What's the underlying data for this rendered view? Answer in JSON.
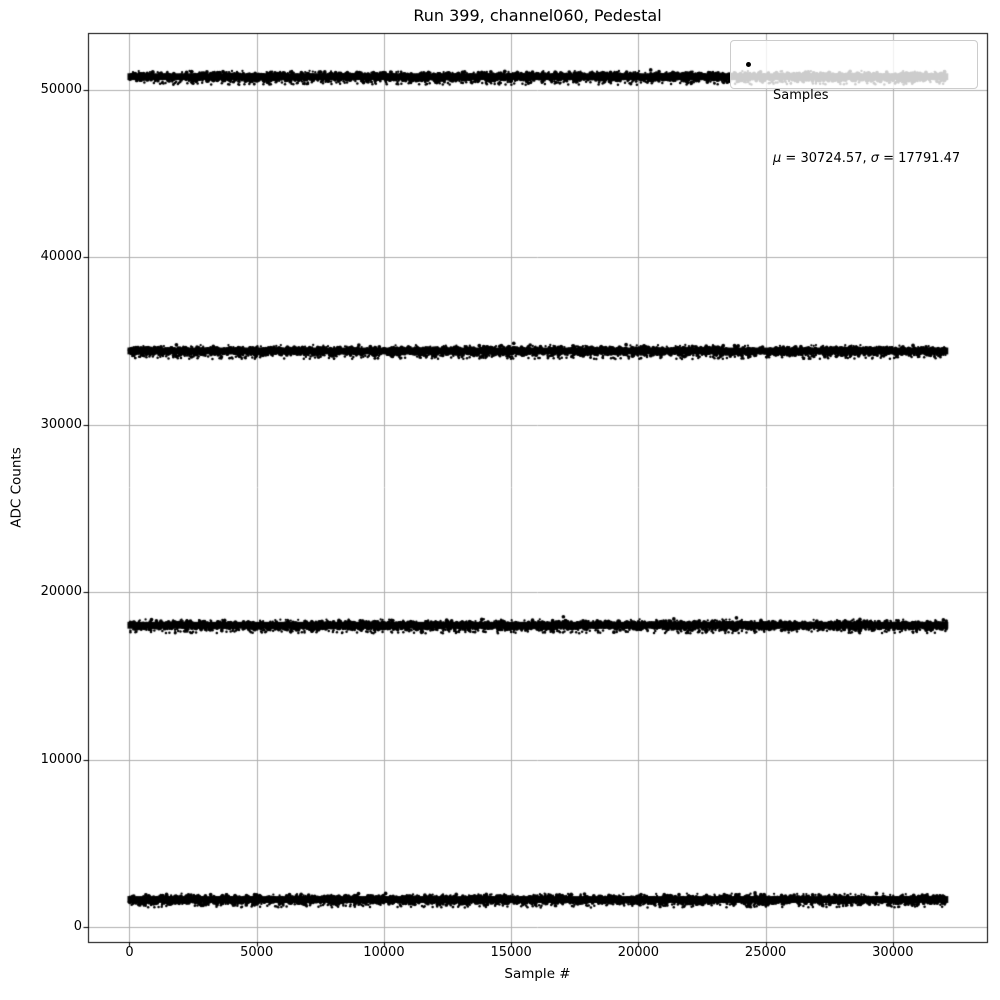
{
  "title": "Run 399, channel060, Pedestal",
  "legend": {
    "series_label": "Samples",
    "mu_symbol": "μ",
    "mu_text": " = 30724.57, ",
    "sigma_symbol": "σ",
    "sigma_text": " = 17791.47"
  },
  "colors": {
    "marker": "#000000",
    "grid": "#b0b0b0",
    "spine": "#000000",
    "background": "#ffffff",
    "legend_border": "#cccccc"
  },
  "chart_data": {
    "type": "scatter",
    "title": "Run 399, channel060, Pedestal",
    "xlabel": "Sample #",
    "ylabel": "ADC Counts",
    "xlim": [
      -1630,
      33700
    ],
    "ylim": [
      -900,
      53400
    ],
    "x_ticks": [
      0,
      5000,
      10000,
      15000,
      20000,
      25000,
      30000
    ],
    "y_ticks": [
      0,
      10000,
      20000,
      30000,
      40000,
      50000
    ],
    "grid": true,
    "legend_position": "upper right",
    "series": [
      {
        "name": "Samples",
        "description": "ADC samples clustered in four flat horizontal bands spanning the full x range",
        "x_range": [
          0,
          32100
        ],
        "band_levels": [
          50790,
          34406,
          18022,
          1638
        ],
        "band_half_width_adc": 200,
        "stats": {
          "mu": 30724.57,
          "sigma": 17791.47
        }
      }
    ]
  }
}
